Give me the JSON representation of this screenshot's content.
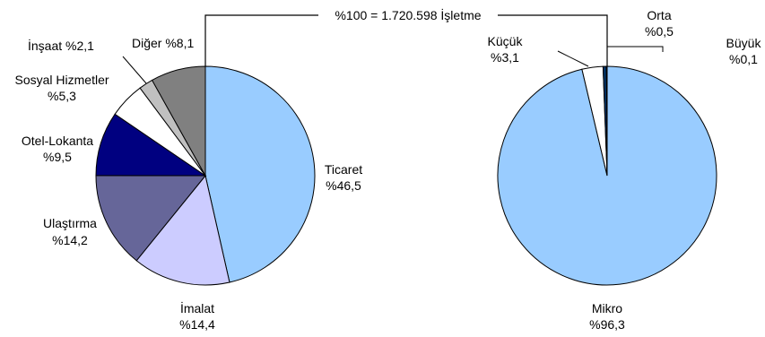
{
  "title": "%100 = 1.720.598 İşletme",
  "chart_data": [
    {
      "type": "pie",
      "slices": [
        {
          "category": "Ticaret",
          "value_label": "%46,5",
          "value": 46.5,
          "color": "#99ccff"
        },
        {
          "category": "İmalat",
          "value_label": "%14,4",
          "value": 14.4,
          "color": "#ccccff"
        },
        {
          "category": "Ulaştırma",
          "value_label": "%14,2",
          "value": 14.2,
          "color": "#666699"
        },
        {
          "category": "Otel-Lokanta",
          "value_label": "%9,5",
          "value": 9.5,
          "color": "#000080"
        },
        {
          "category": "Sosyal Hizmetler",
          "value_label": "%5,3",
          "value": 5.3,
          "color": "#ffffff"
        },
        {
          "category": "İnşaat",
          "value_label": "%2,1",
          "value": 2.1,
          "color": "#c0c0c0"
        },
        {
          "category": "Diğer",
          "value_label": "%8,1",
          "value": 8.1,
          "color": "#808080"
        }
      ]
    },
    {
      "type": "pie",
      "slices": [
        {
          "category": "Mikro",
          "value_label": "%96,3",
          "value": 96.3,
          "color": "#99ccff"
        },
        {
          "category": "Küçük",
          "value_label": "%3,1",
          "value": 3.1,
          "color": "#ffffff"
        },
        {
          "category": "Orta",
          "value_label": "%0,5",
          "value": 0.5,
          "color": "#003366"
        },
        {
          "category": "Büyük",
          "value_label": "%0,1",
          "value": 0.1,
          "color": "#ffffff"
        }
      ]
    }
  ]
}
